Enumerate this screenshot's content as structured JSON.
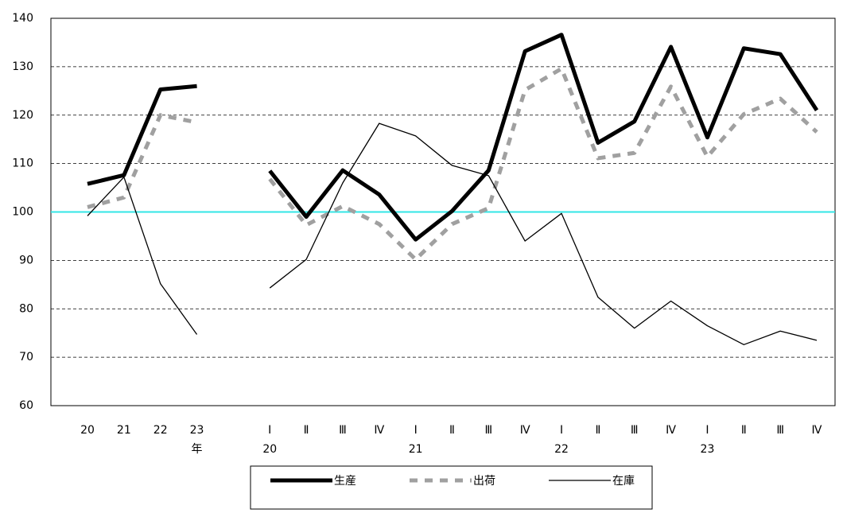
{
  "chart_data": {
    "type": "line",
    "categories": [
      "20",
      "21",
      "22",
      "23",
      null,
      "Ⅰ",
      "Ⅱ",
      "Ⅲ",
      "Ⅳ",
      "Ⅰ",
      "Ⅱ",
      "Ⅲ",
      "Ⅳ",
      "Ⅰ",
      "Ⅱ",
      "Ⅲ",
      "Ⅳ",
      "Ⅰ",
      "Ⅱ",
      "Ⅲ",
      "Ⅳ"
    ],
    "sublabels": [
      null,
      null,
      null,
      "年",
      null,
      "20",
      null,
      null,
      null,
      "21",
      null,
      null,
      null,
      "22",
      null,
      null,
      null,
      "23",
      null,
      null,
      null
    ],
    "series": [
      {
        "name": "生産",
        "color": "#000000",
        "style": "thick",
        "values": [
          105.8,
          107.6,
          125.3,
          126.0,
          null,
          108.5,
          99.0,
          108.6,
          103.6,
          94.3,
          100.2,
          108.6,
          133.2,
          136.6,
          114.3,
          118.7,
          134.1,
          115.4,
          133.8,
          132.6,
          121.0
        ]
      },
      {
        "name": "出荷",
        "color": "#a0a0a0",
        "style": "dashed",
        "values": [
          101.0,
          103.0,
          120.0,
          118.5,
          null,
          106.8,
          97.3,
          101.2,
          97.5,
          90.2,
          97.5,
          100.8,
          125.2,
          129.6,
          111.1,
          112.2,
          125.9,
          111.4,
          120.2,
          123.4,
          116.5
        ]
      },
      {
        "name": "在庫",
        "color": "#000000",
        "style": "thin",
        "values": [
          99.2,
          107.2,
          85.2,
          74.7,
          null,
          84.3,
          90.2,
          106.0,
          118.3,
          115.7,
          109.6,
          107.5,
          94.0,
          99.7,
          82.4,
          76.0,
          81.6,
          76.5,
          72.6,
          75.4,
          73.5
        ]
      }
    ],
    "reference_line": {
      "value": 100,
      "color": "#33e6e6"
    },
    "ylim": [
      60,
      140
    ],
    "yticks": [
      60,
      70,
      80,
      90,
      100,
      110,
      120,
      130,
      140
    ],
    "grid": true
  }
}
